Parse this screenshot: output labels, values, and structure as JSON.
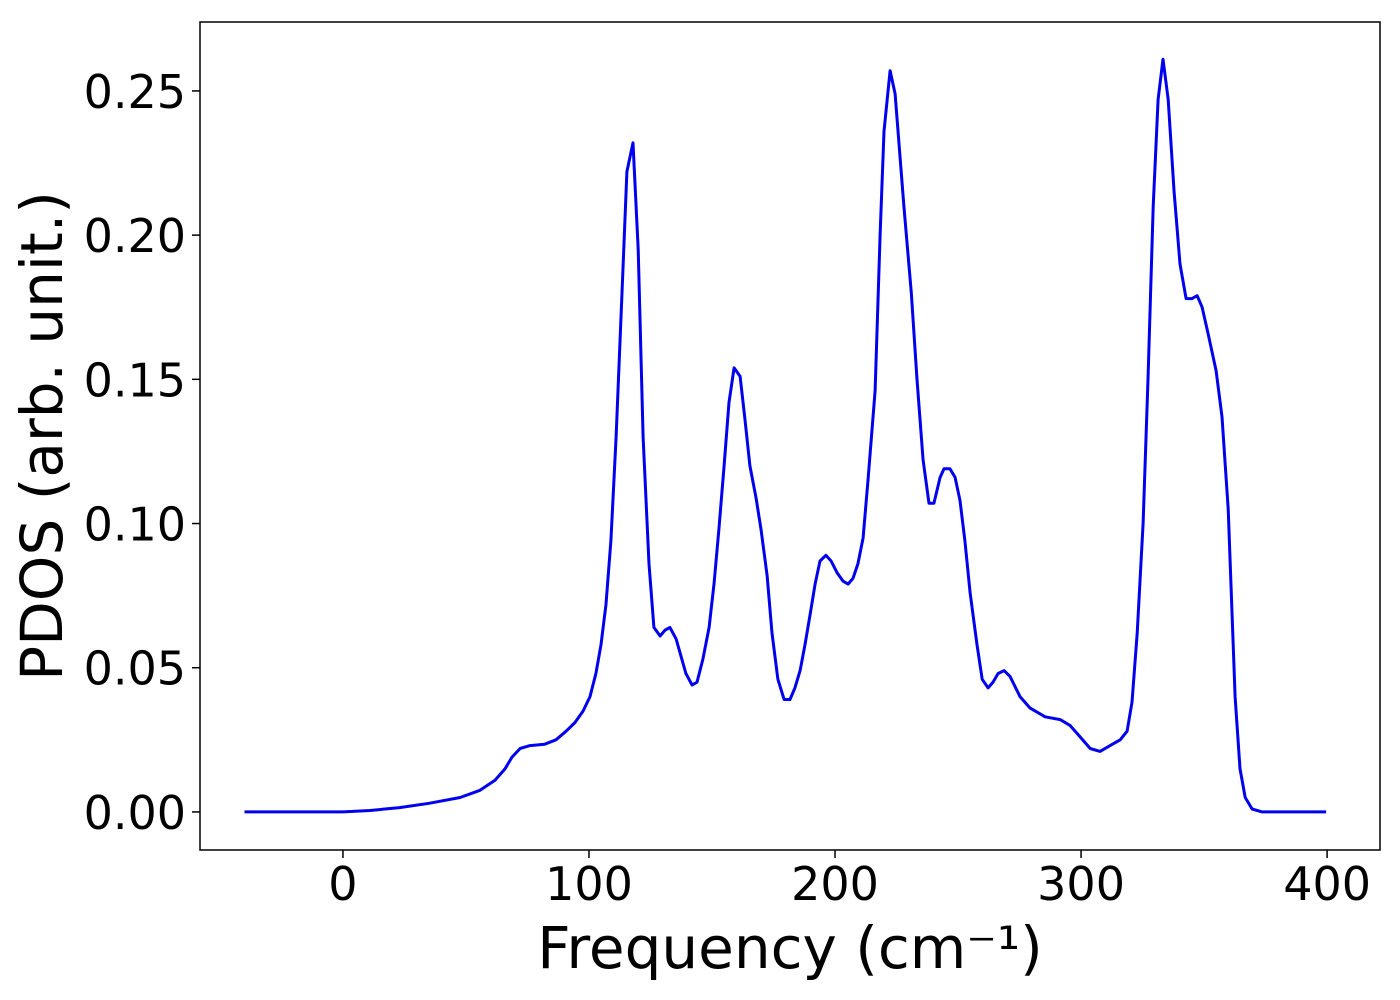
{
  "chart_data": {
    "type": "line",
    "xlabel": "Frequency (cm⁻¹)",
    "ylabel": "PDOS (arb. unit.)",
    "xlim": [
      -58.1,
      421.5
    ],
    "ylim": [
      -0.0132,
      0.2739
    ],
    "xticks": [
      0,
      100,
      200,
      300,
      400
    ],
    "yticks": [
      {
        "value": 0,
        "label": "0.00"
      },
      {
        "value": 0.05,
        "label": "0.05"
      },
      {
        "value": 0.1,
        "label": "0.10"
      },
      {
        "value": 0.15,
        "label": "0.15"
      },
      {
        "value": 0.2,
        "label": "0.20"
      },
      {
        "value": 0.25,
        "label": "0.25"
      }
    ],
    "series": [
      {
        "color": "#0000ee",
        "x": [
          -40,
          0,
          11,
          23,
          35,
          47.6,
          55.7,
          61.8,
          65.9,
          68.7,
          72,
          76,
          82,
          86.6,
          90.7,
          94.3,
          97.6,
          100.4,
          102.8,
          104.9,
          106.9,
          108.9,
          111,
          113.4,
          115.4,
          117.9,
          120,
          122,
          124.4,
          126.4,
          128.9,
          130.9,
          132.9,
          135.4,
          137.4,
          139.4,
          141.9,
          143.9,
          146.3,
          148.8,
          150.8,
          152.8,
          154.9,
          156.9,
          159,
          161.4,
          163.4,
          165.4,
          167.9,
          169.9,
          172.4,
          174.4,
          176.8,
          179.3,
          181.7,
          183.7,
          185.8,
          187.8,
          189.8,
          191.9,
          193.9,
          196.3,
          198.4,
          200.8,
          203.3,
          205.3,
          207.3,
          209.3,
          211.4,
          213.4,
          216.3,
          218.3,
          219.9,
          222.4,
          224.4,
          228,
          231,
          233.3,
          235.8,
          238.2,
          240.2,
          242.7,
          244.3,
          246.7,
          248.8,
          250.8,
          252.8,
          254.9,
          257.7,
          259.8,
          262.2,
          264.2,
          266.3,
          268.7,
          271.1,
          275.2,
          279.3,
          285.4,
          291.5,
          295.5,
          299.6,
          303.7,
          307.7,
          311.8,
          315.9,
          318.7,
          320.7,
          322.8,
          325.2,
          327.2,
          329.3,
          331.3,
          333.3,
          335.4,
          337.8,
          340.2,
          342.7,
          345.1,
          347.2,
          349.2,
          351.6,
          354.9,
          357.3,
          359.8,
          362.6,
          364.6,
          366.7,
          369.5,
          373.6,
          399.6
        ],
        "values": [
          0,
          0,
          0.0005,
          0.0015,
          0.003,
          0.005,
          0.0075,
          0.011,
          0.015,
          0.019,
          0.022,
          0.023,
          0.0235,
          0.025,
          0.028,
          0.031,
          0.035,
          0.04,
          0.048,
          0.058,
          0.072,
          0.094,
          0.13,
          0.18,
          0.222,
          0.232,
          0.195,
          0.13,
          0.086,
          0.064,
          0.061,
          0.063,
          0.064,
          0.06,
          0.054,
          0.048,
          0.044,
          0.045,
          0.053,
          0.064,
          0.079,
          0.098,
          0.12,
          0.142,
          0.154,
          0.151,
          0.136,
          0.12,
          0.109,
          0.098,
          0.082,
          0.062,
          0.046,
          0.039,
          0.039,
          0.043,
          0.049,
          0.058,
          0.068,
          0.079,
          0.087,
          0.089,
          0.087,
          0.083,
          0.08,
          0.079,
          0.081,
          0.086,
          0.095,
          0.115,
          0.146,
          0.2,
          0.236,
          0.257,
          0.249,
          0.21,
          0.18,
          0.15,
          0.122,
          0.107,
          0.107,
          0.116,
          0.119,
          0.119,
          0.116,
          0.108,
          0.094,
          0.076,
          0.058,
          0.046,
          0.043,
          0.045,
          0.048,
          0.049,
          0.047,
          0.04,
          0.036,
          0.033,
          0.032,
          0.03,
          0.026,
          0.022,
          0.021,
          0.023,
          0.025,
          0.028,
          0.038,
          0.062,
          0.1,
          0.15,
          0.21,
          0.247,
          0.261,
          0.247,
          0.215,
          0.19,
          0.178,
          0.178,
          0.179,
          0.175,
          0.166,
          0.153,
          0.137,
          0.105,
          0.04,
          0.015,
          0.005,
          0.001,
          0,
          0
        ]
      }
    ]
  }
}
